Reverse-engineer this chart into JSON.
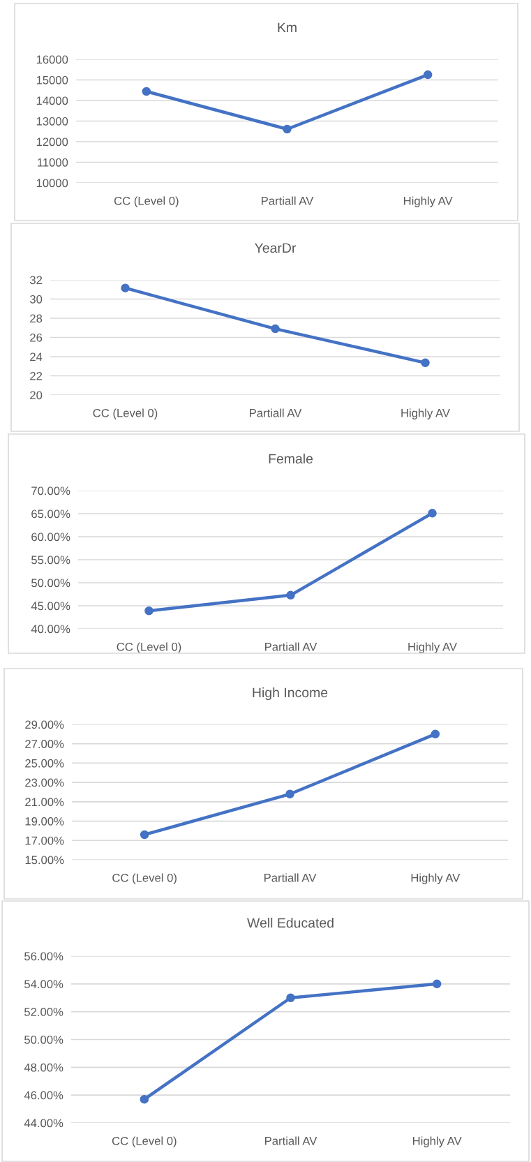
{
  "chart_data": [
    {
      "type": "line",
      "title": "Km",
      "categories": [
        "CC (Level 0)",
        "Partiall AV",
        "Highly AV"
      ],
      "series": [
        {
          "color": "#4472c4",
          "values": [
            14440,
            12610,
            15250
          ]
        }
      ],
      "ylim": [
        10000,
        16000
      ],
      "yticks": [
        10000,
        11000,
        12000,
        13000,
        14000,
        15000,
        16000
      ],
      "grid": "y",
      "marker": "circle",
      "line_style": "solid"
    },
    {
      "type": "line",
      "title": "YearDr",
      "categories": [
        "CC (Level 0)",
        "Partiall AV",
        "Highly AV"
      ],
      "series": [
        {
          "color": "#4472c4",
          "values": [
            31.15,
            26.9,
            23.36
          ]
        }
      ],
      "ylim": [
        20,
        32
      ],
      "yticks": [
        20,
        22,
        24,
        26,
        28,
        30,
        32
      ],
      "grid": "y",
      "marker": "circle",
      "line_style": "solid"
    },
    {
      "type": "line",
      "title": "Female",
      "categories": [
        "CC (Level 0)",
        "Partiall AV",
        "Highly AV"
      ],
      "series": [
        {
          "color": "#4472c4",
          "values": [
            43.9,
            47.3,
            65.1
          ]
        }
      ],
      "ylim": [
        40,
        70
      ],
      "yticks": [
        {
          "value": 40,
          "label": "40.00%"
        },
        {
          "value": 45,
          "label": "45.00%"
        },
        {
          "value": 50,
          "label": "50.00%"
        },
        {
          "value": 55,
          "label": "55.00%"
        },
        {
          "value": 60,
          "label": "60.00%"
        },
        {
          "value": 65,
          "label": "65.00%"
        },
        {
          "value": 70,
          "label": "70.00%"
        }
      ],
      "grid": "y",
      "marker": "circle",
      "line_style": "solid"
    },
    {
      "type": "line",
      "title": "High Income",
      "categories": [
        "CC (Level 0)",
        "Partiall AV",
        "Highly AV"
      ],
      "series": [
        {
          "color": "#4472c4",
          "values": [
            17.6,
            21.8,
            28.0
          ]
        }
      ],
      "ylim": [
        15,
        29
      ],
      "yticks": [
        {
          "value": 15,
          "label": "15.00%"
        },
        {
          "value": 17,
          "label": "17.00%"
        },
        {
          "value": 19,
          "label": "19.00%"
        },
        {
          "value": 21,
          "label": "21.00%"
        },
        {
          "value": 23,
          "label": "23.00%"
        },
        {
          "value": 25,
          "label": "25.00%"
        },
        {
          "value": 27,
          "label": "27.00%"
        },
        {
          "value": 29,
          "label": "29.00%"
        }
      ],
      "grid": "y",
      "marker": "circle",
      "line_style": "solid"
    },
    {
      "type": "line",
      "title": "Well Educated",
      "categories": [
        "CC (Level 0)",
        "Partiall AV",
        "Highly AV"
      ],
      "series": [
        {
          "color": "#4472c4",
          "values": [
            45.7,
            53.0,
            54.0
          ]
        }
      ],
      "ylim": [
        44,
        56
      ],
      "yticks": [
        {
          "value": 44,
          "label": "44.00%"
        },
        {
          "value": 46,
          "label": "46.00%"
        },
        {
          "value": 48,
          "label": "48.00%"
        },
        {
          "value": 50,
          "label": "50.00%"
        },
        {
          "value": 52,
          "label": "52.00%"
        },
        {
          "value": 54,
          "label": "54.00%"
        },
        {
          "value": 56,
          "label": "56.00%"
        }
      ],
      "grid": "y",
      "marker": "circle",
      "line_style": "solid"
    }
  ]
}
